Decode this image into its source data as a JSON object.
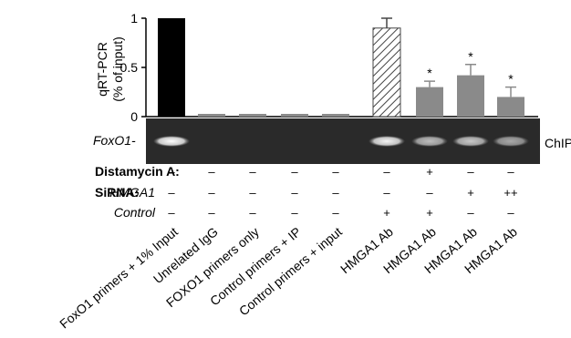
{
  "chart_data": {
    "type": "bar",
    "ylabel_line1": "qRT-PCR",
    "ylabel_line2": "(% of input)",
    "ylim": [
      0,
      1
    ],
    "yticks": [
      "0",
      "0.5",
      "1"
    ],
    "grid": false,
    "categories": [
      "FoxO1 primers + 1% Input",
      "Unrelated IgG",
      "FOXO1 primers only",
      "Control primers + IP",
      "Control primers + input",
      "HMGA1 Ab",
      "HMGA1 Ab",
      "HMGA1 Ab",
      "HMGA1 Ab"
    ],
    "values": [
      1.0,
      0.02,
      0.02,
      0.02,
      0.02,
      0.9,
      0.3,
      0.42,
      0.2
    ],
    "errors": [
      0,
      0,
      0,
      0,
      0,
      0.1,
      0.06,
      0.11,
      0.1
    ],
    "significant": [
      false,
      false,
      false,
      false,
      false,
      false,
      true,
      true,
      true
    ],
    "significance_marker": "*",
    "bar_styles": [
      "solid-black",
      "gray",
      "gray",
      "gray",
      "gray",
      "hatched",
      "gray",
      "gray",
      "gray"
    ],
    "colors": {
      "black": "#000000",
      "gray": "#8a8a8a",
      "hatch": "#444444",
      "gel_bg": "#2a2a2a",
      "band": "#f2f2f2"
    }
  },
  "gel": {
    "gene_label": "FoxO1-",
    "side_label": "ChIP",
    "band_lanes": [
      0,
      5,
      6,
      7,
      8
    ],
    "band_intensity": [
      1.0,
      0.95,
      0.7,
      0.75,
      0.6
    ]
  },
  "conditions": {
    "distamycin_label": "Distamycin A:",
    "sirna_label": "SiRNA:",
    "hmga1_label": "HMGA1",
    "control_label": "Control",
    "distamycin": [
      "–",
      "–",
      "–",
      "–",
      "–",
      "–",
      "+",
      "–",
      "–"
    ],
    "sirna_hmga1": [
      "–",
      "–",
      "–",
      "–",
      "–",
      "–",
      "–",
      "+",
      "++"
    ],
    "control": [
      "–",
      "–",
      "–",
      "–",
      "–",
      "+",
      "+",
      "–",
      "–"
    ]
  }
}
